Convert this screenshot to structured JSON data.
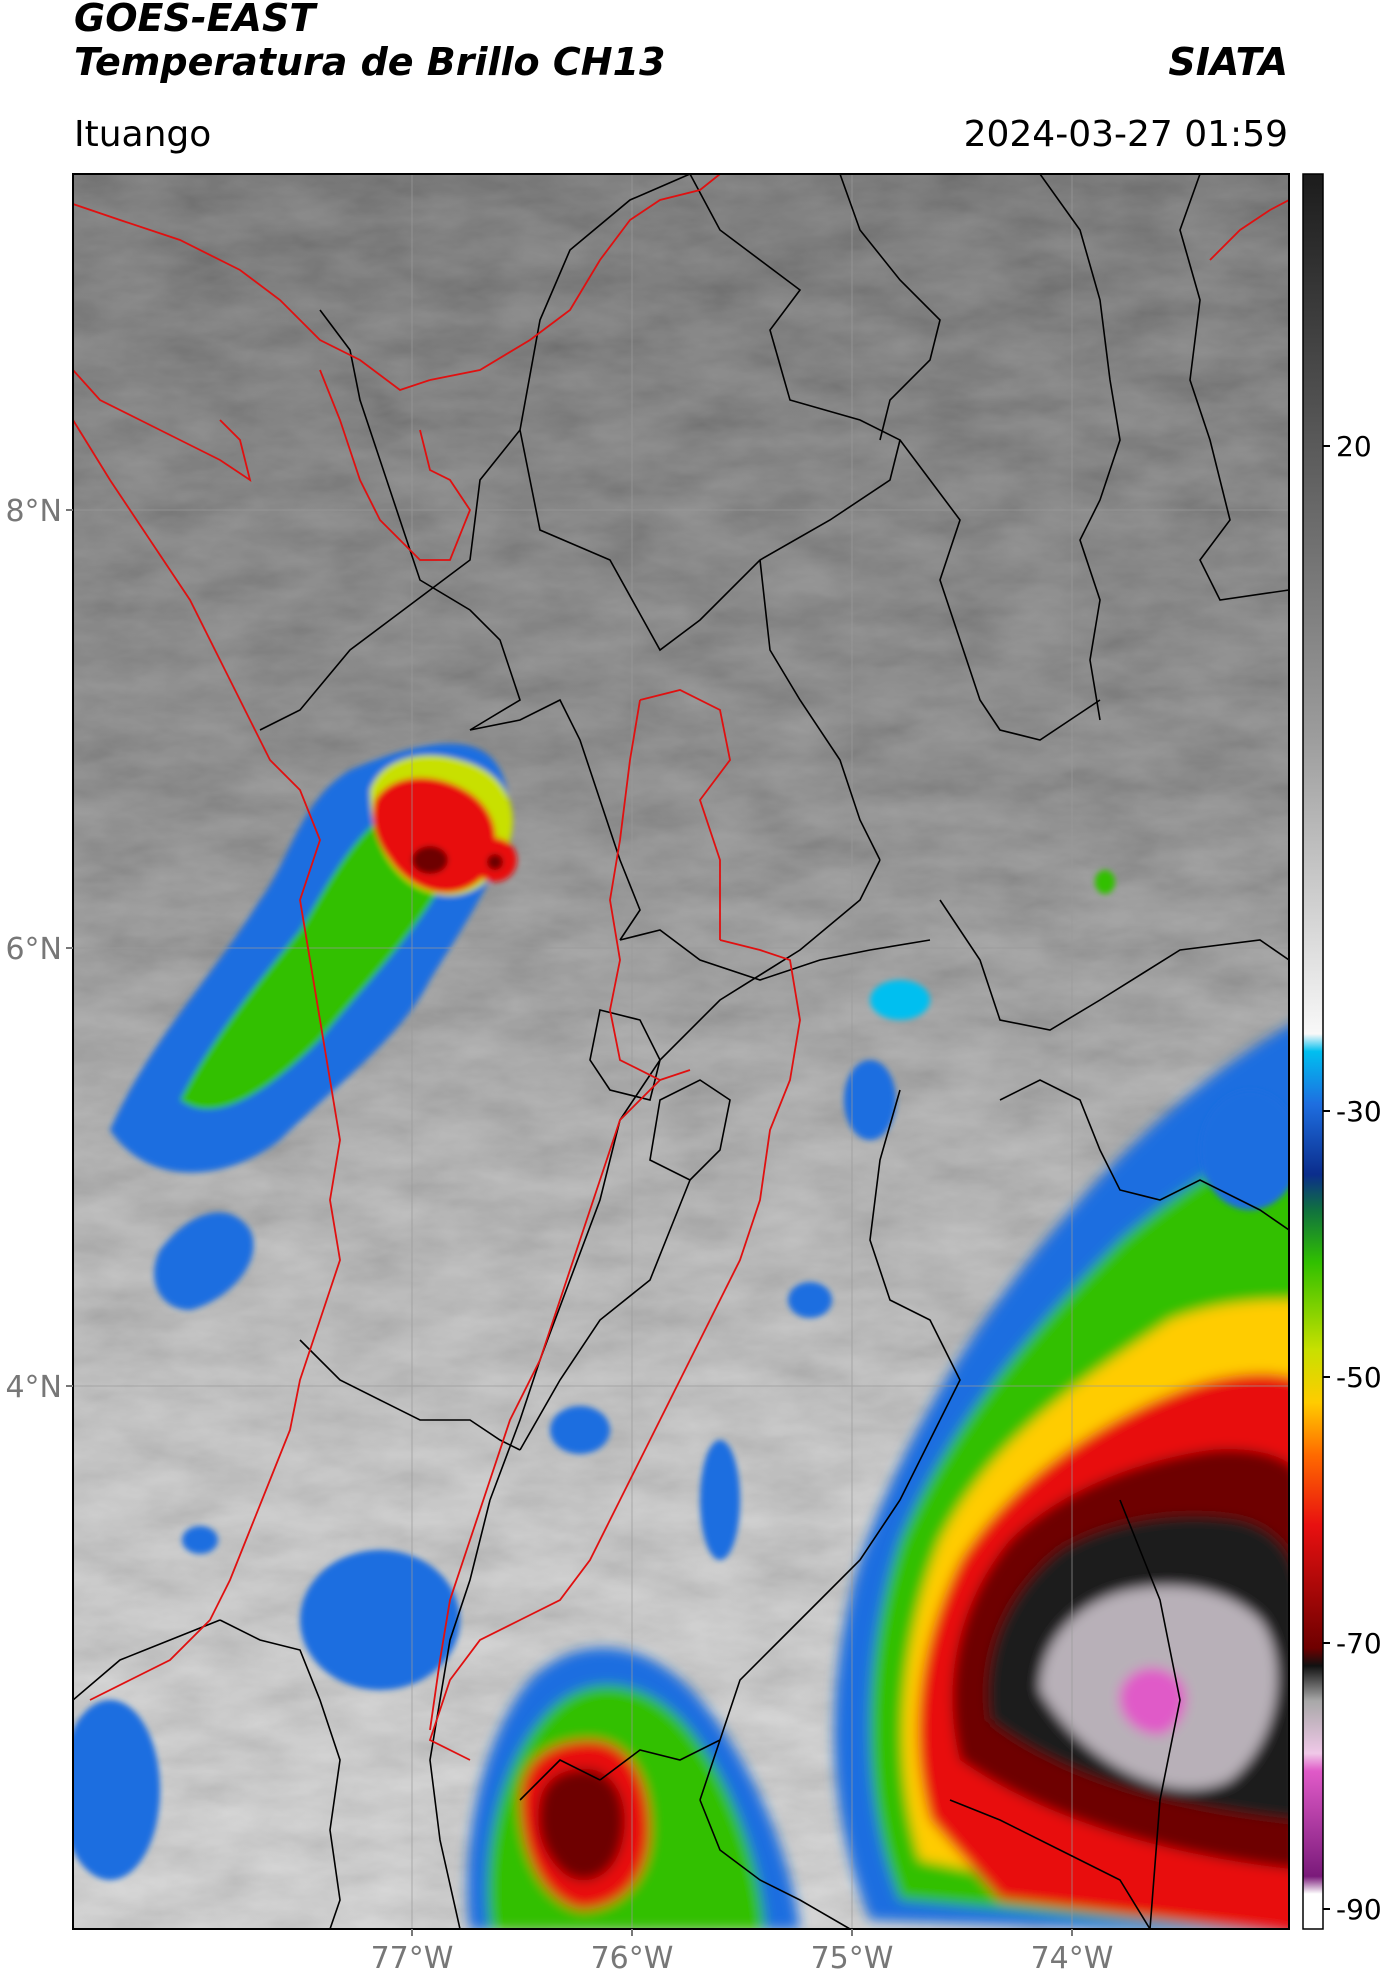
{
  "header": {
    "title_line1": "GOES-EAST",
    "title_line2": "Temperatura de Brillo CH13",
    "organization": "SIATA",
    "region": "Ituango",
    "timestamp": "2024-03-27 01:59"
  },
  "map": {
    "lat_ticks": [
      "8°N",
      "6°N",
      "4°N"
    ],
    "lon_ticks": [
      "77°W",
      "76°W",
      "75°W",
      "74°W"
    ],
    "boundary_colors": {
      "country": "#000000",
      "region_highlight": "#e01010"
    }
  },
  "colorbar": {
    "tick_labels": [
      "20",
      "-30",
      "-50",
      "-70",
      "-90"
    ],
    "range": [
      -90,
      50
    ],
    "stops": [
      "#ffffff",
      "#8a1a8a",
      "#e05ac8",
      "#d8d8d8",
      "#1a1a1a",
      "#8b0000",
      "#e81010",
      "#ff8c00",
      "#ffd700",
      "#7ee000",
      "#20a020",
      "#0b2d8c",
      "#1e90ff",
      "#00c8f0",
      "#f5f5f5",
      "#9a9a9a",
      "#2a2a2a"
    ]
  }
}
